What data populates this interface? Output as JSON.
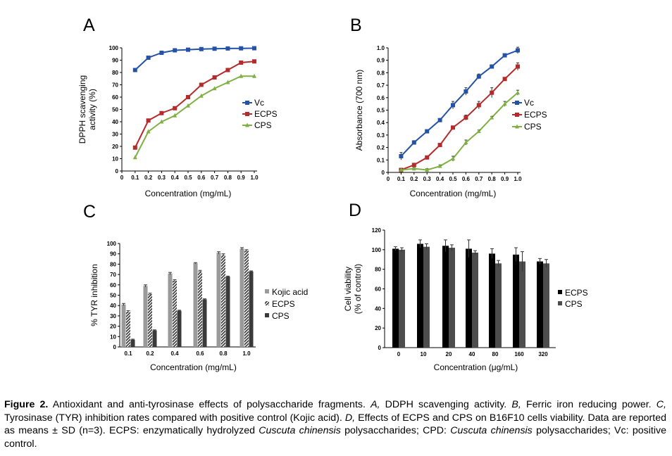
{
  "caption": {
    "label": "Figure 2.",
    "s1": " Antioxidant and anti-tyrosinase effects of polysaccharide fragments. ",
    "A": "A,",
    "s2": " DDPH scavenging activity. ",
    "B": "B,",
    "s3": " Ferric iron reducing power. ",
    "C": "C,",
    "s4": " Tyrosinase (TYR) inhibition rates compared with positive control (Kojic acid). ",
    "D": "D,",
    "s5": " Effects of ECPS and CPS on B16F10 cells viability. Data are reported as means ± SD (n=3). ECPS: enzymatically hydrolyzed ",
    "species1": "Cuscuta chinensis",
    "s6": " polysaccharides; CPD: ",
    "species2": "Cuscuta chinensis",
    "s7": " polysaccharides; Vc: positive control."
  },
  "chart_data": [
    {
      "panel": "A",
      "type": "line",
      "x_ticks": [
        "0",
        "0.1",
        "0.2",
        "0.3",
        "0.4",
        "0.5",
        "0.6",
        "0.7",
        "0.8",
        "0.9",
        "1.0"
      ],
      "y_ticks": [
        "0",
        "10",
        "20",
        "30",
        "40",
        "50",
        "60",
        "70",
        "80",
        "90",
        "100"
      ],
      "xlabel": "Concentration (mg/mL)",
      "ylabel": [
        "DPPH scavenging",
        "activity (%)"
      ],
      "xlim": [
        0,
        1.0
      ],
      "ylim": [
        0,
        100
      ],
      "legend_position": "right",
      "x": [
        0.1,
        0.2,
        0.3,
        0.4,
        0.5,
        0.6,
        0.7,
        0.8,
        0.9,
        1.0
      ],
      "series": [
        {
          "name": "Vc",
          "color": "#2452a6",
          "marker": "square",
          "values": [
            82,
            92,
            96,
            98,
            98.5,
            99,
            99.3,
            99.5,
            99.6,
            99.7
          ]
        },
        {
          "name": "ECPS",
          "color": "#b52a2a",
          "marker": "square",
          "values": [
            19,
            41,
            47,
            51,
            60,
            70,
            76,
            82,
            88,
            89
          ]
        },
        {
          "name": "CPS",
          "color": "#7fb042",
          "marker": "triangle",
          "values": [
            11,
            32,
            40,
            45,
            53,
            61,
            67,
            72,
            77,
            77
          ]
        }
      ]
    },
    {
      "panel": "B",
      "type": "line",
      "x_ticks": [
        "0",
        "0.1",
        "0.2",
        "0.3",
        "0.4",
        "0.5",
        "0.6",
        "0.7",
        "0.8",
        "0.9",
        "1.0"
      ],
      "y_ticks": [
        "0",
        "0.1",
        "0.2",
        "0.3",
        "0.4",
        "0.5",
        "0.6",
        "0.7",
        "0.8",
        "0.9",
        "1.0"
      ],
      "xlabel": "Concentration (mg/mL)",
      "ylabel": [
        "Absorbance (700 nm)"
      ],
      "xlim": [
        0,
        1.0
      ],
      "ylim": [
        0,
        1.0
      ],
      "legend_position": "right",
      "x": [
        0.1,
        0.2,
        0.3,
        0.4,
        0.5,
        0.6,
        0.7,
        0.8,
        0.9,
        1.0
      ],
      "series": [
        {
          "name": "Vc",
          "color": "#2452a6",
          "marker": "square",
          "values": [
            0.13,
            0.24,
            0.33,
            0.42,
            0.54,
            0.65,
            0.77,
            0.85,
            0.94,
            0.98
          ],
          "errors": [
            0.03,
            0.015,
            0.01,
            0.01,
            0.03,
            0.03,
            0.02,
            0.01,
            0.01,
            0.025
          ]
        },
        {
          "name": "ECPS",
          "color": "#b52a2a",
          "marker": "square",
          "values": [
            0.02,
            0.06,
            0.12,
            0.22,
            0.36,
            0.44,
            0.54,
            0.64,
            0.75,
            0.85
          ],
          "errors": [
            0.01,
            0.01,
            0.01,
            0.01,
            0.01,
            0.02,
            0.03,
            0.04,
            0.01,
            0.03
          ]
        },
        {
          "name": "CPS",
          "color": "#7fb042",
          "marker": "triangle",
          "values": [
            0.02,
            0.03,
            0.02,
            0.05,
            0.11,
            0.24,
            0.33,
            0.44,
            0.55,
            0.64
          ],
          "errors": [
            0.01,
            0.01,
            0.01,
            0.01,
            0.02,
            0.02,
            0.01,
            0.01,
            0.02,
            0.02
          ]
        }
      ]
    },
    {
      "panel": "C",
      "type": "bar",
      "categories": [
        "0.1",
        "0.2",
        "0.4",
        "0.6",
        "0.8",
        "1.0"
      ],
      "y_ticks": [
        "0",
        "10",
        "20",
        "30",
        "40",
        "50",
        "60",
        "70",
        "80",
        "90",
        "100"
      ],
      "xlabel": "Concentration (mg/mL)",
      "ylabel": [
        "% TYR inhibition"
      ],
      "ylim": [
        0,
        100
      ],
      "legend_position": "right",
      "series": [
        {
          "name": "Kojic acid",
          "color": "#9a9a9a",
          "pattern": "solid",
          "values": [
            41,
            59,
            71,
            81,
            91,
            95
          ],
          "errors": [
            1,
            1,
            1,
            0.5,
            1,
            1
          ]
        },
        {
          "name": "ECPS",
          "color": "#333333",
          "pattern": "diagonal-stripes",
          "values": [
            34,
            51,
            64,
            73,
            89,
            93
          ],
          "errors": [
            1,
            1,
            1,
            1,
            1,
            1
          ]
        },
        {
          "name": "CPS",
          "color": "#3a3a3a",
          "pattern": "solid",
          "values": [
            7,
            16,
            35,
            46,
            68,
            73
          ],
          "errors": [
            0.5,
            0.5,
            0.5,
            0.5,
            0.5,
            0.5
          ]
        }
      ]
    },
    {
      "panel": "D",
      "type": "bar",
      "categories": [
        "0",
        "10",
        "20",
        "40",
        "80",
        "160",
        "320"
      ],
      "y_ticks": [
        "0",
        "20",
        "40",
        "60",
        "80",
        "100",
        "120"
      ],
      "xlabel": "Concentration (μg/mL)",
      "ylabel": [
        "Cell viability",
        "(% of control)"
      ],
      "ylim": [
        0,
        120
      ],
      "legend_position": "right",
      "series": [
        {
          "name": "ECPS",
          "color": "#000000",
          "pattern": "solid",
          "values": [
            101,
            106,
            104,
            101,
            96,
            95,
            88
          ],
          "errors": [
            2,
            4,
            6,
            9,
            5,
            7,
            3
          ]
        },
        {
          "name": "CPS",
          "color": "#4d4d4d",
          "pattern": "solid",
          "values": [
            100,
            103,
            102,
            97,
            86,
            88,
            86
          ],
          "errors": [
            2,
            3,
            3,
            2,
            3,
            10,
            4
          ]
        }
      ]
    }
  ]
}
